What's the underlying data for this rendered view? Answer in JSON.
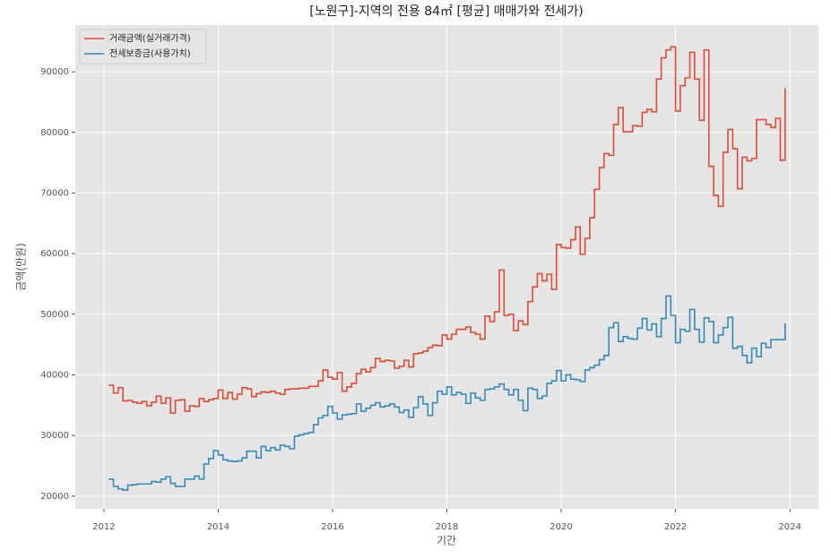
{
  "chart_data": {
    "type": "line",
    "drawstyle": "steps",
    "title": "[노원구]-지역의 전용 84㎡ [평균] 매매가와 전세가)",
    "x_label": "기간",
    "y_label": "금액(만원)",
    "xlim": [
      2011.5,
      2024.5
    ],
    "xticks": [
      2012,
      2014,
      2016,
      2018,
      2020,
      2022,
      2024
    ],
    "ylim": [
      17900,
      97700
    ],
    "yticks": [
      20000,
      30000,
      40000,
      50000,
      60000,
      70000,
      80000,
      90000
    ],
    "grid": true,
    "legend": "upper left",
    "x": [
      2012.083,
      2012.167,
      2012.25,
      2012.333,
      2012.417,
      2012.5,
      2012.583,
      2012.667,
      2012.75,
      2012.833,
      2012.917,
      2013.0,
      2013.083,
      2013.167,
      2013.25,
      2013.333,
      2013.417,
      2013.5,
      2013.583,
      2013.667,
      2013.75,
      2013.833,
      2013.917,
      2014.0,
      2014.083,
      2014.167,
      2014.25,
      2014.333,
      2014.417,
      2014.5,
      2014.583,
      2014.667,
      2014.75,
      2014.833,
      2014.917,
      2015.0,
      2015.083,
      2015.167,
      2015.25,
      2015.333,
      2015.417,
      2015.5,
      2015.583,
      2015.667,
      2015.75,
      2015.833,
      2015.917,
      2016.0,
      2016.083,
      2016.167,
      2016.25,
      2016.333,
      2016.417,
      2016.5,
      2016.583,
      2016.667,
      2016.75,
      2016.833,
      2016.917,
      2017.0,
      2017.083,
      2017.167,
      2017.25,
      2017.333,
      2017.417,
      2017.5,
      2017.583,
      2017.667,
      2017.75,
      2017.833,
      2017.917,
      2018.0,
      2018.083,
      2018.167,
      2018.25,
      2018.333,
      2018.417,
      2018.5,
      2018.583,
      2018.667,
      2018.75,
      2018.833,
      2018.917,
      2019.0,
      2019.083,
      2019.167,
      2019.25,
      2019.333,
      2019.417,
      2019.5,
      2019.583,
      2019.667,
      2019.75,
      2019.833,
      2019.917,
      2020.0,
      2020.083,
      2020.167,
      2020.25,
      2020.333,
      2020.417,
      2020.5,
      2020.583,
      2020.667,
      2020.75,
      2020.833,
      2020.917,
      2021.0,
      2021.083,
      2021.167,
      2021.25,
      2021.333,
      2021.417,
      2021.5,
      2021.583,
      2021.667,
      2021.75,
      2021.833,
      2021.917,
      2022.0,
      2022.083,
      2022.167,
      2022.25,
      2022.333,
      2022.417,
      2022.5,
      2022.583,
      2022.667,
      2022.75,
      2022.833,
      2022.917,
      2023.0,
      2023.083,
      2023.167,
      2023.25,
      2023.333,
      2023.417,
      2023.5,
      2023.583,
      2023.667,
      2023.75,
      2023.833,
      2023.917
    ],
    "series": [
      {
        "name": "거래금액(실거래가격)",
        "color": "#e24a33",
        "values": [
          38300,
          37000,
          37900,
          35700,
          35800,
          35500,
          35300,
          35600,
          34900,
          35500,
          36500,
          35300,
          36200,
          33700,
          35800,
          35900,
          34000,
          34900,
          34800,
          36100,
          35600,
          35900,
          36100,
          37500,
          36100,
          37100,
          36000,
          36800,
          37900,
          37700,
          36400,
          36900,
          37200,
          37100,
          37300,
          37000,
          36800,
          37600,
          37700,
          37700,
          37800,
          37800,
          38100,
          38100,
          39000,
          40800,
          39600,
          39300,
          40400,
          37300,
          38000,
          38600,
          40200,
          40900,
          40500,
          41200,
          42700,
          42200,
          42400,
          42300,
          41100,
          41400,
          42400,
          41300,
          43500,
          43600,
          43900,
          44500,
          44900,
          44800,
          46600,
          45900,
          46700,
          47500,
          47500,
          47900,
          47000,
          46700,
          45900,
          49700,
          48800,
          50400,
          57300,
          49800,
          50000,
          47300,
          48900,
          48300,
          52100,
          54500,
          56700,
          55500,
          56600,
          54100,
          61500,
          61000,
          60900,
          62300,
          64400,
          59900,
          62500,
          65900,
          70600,
          74200,
          76500,
          76200,
          81300,
          84100,
          80100,
          80100,
          81100,
          81000,
          83300,
          83800,
          83400,
          88800,
          92300,
          93600,
          94100,
          83500,
          87700,
          89000,
          93200,
          88800,
          82000,
          93600,
          74400,
          69600,
          67800,
          76700,
          80500,
          77300,
          70700,
          75900,
          75300,
          75700,
          82100,
          82100,
          81300,
          80800,
          82300,
          75400,
          87300
        ]
      },
      {
        "name": "전세보증금(사용가치)",
        "color": "#348abd",
        "values": [
          22800,
          21600,
          21200,
          21000,
          21800,
          21900,
          22000,
          22000,
          22000,
          22400,
          22300,
          22800,
          23200,
          22100,
          21600,
          21600,
          22800,
          22800,
          23300,
          22800,
          25300,
          26200,
          27500,
          26800,
          26000,
          25800,
          25700,
          25800,
          26300,
          27400,
          27400,
          26300,
          28200,
          27500,
          28000,
          27600,
          28400,
          28200,
          27800,
          29900,
          30100,
          30300,
          30500,
          31800,
          32900,
          33300,
          34800,
          33700,
          32700,
          33400,
          33500,
          33600,
          35200,
          34000,
          34500,
          35000,
          35400,
          34700,
          34900,
          35200,
          34700,
          33800,
          34200,
          33000,
          34600,
          36400,
          35200,
          33300,
          35400,
          37300,
          36800,
          38000,
          36700,
          37100,
          36800,
          35300,
          37000,
          36200,
          35800,
          37600,
          37700,
          38000,
          38500,
          37600,
          36700,
          37600,
          35800,
          34100,
          37800,
          37600,
          36100,
          36500,
          38600,
          39000,
          40700,
          39000,
          40000,
          39300,
          39200,
          38900,
          40800,
          41200,
          41600,
          42500,
          43200,
          47800,
          48600,
          45500,
          46300,
          46000,
          45900,
          47700,
          49300,
          47400,
          48400,
          46300,
          49300,
          53000,
          49800,
          45300,
          47500,
          47200,
          50800,
          47500,
          45400,
          49400,
          48800,
          45300,
          46600,
          47800,
          49500,
          44400,
          44700,
          43200,
          42000,
          44400,
          43000,
          45200,
          44500,
          45800,
          45800,
          45800,
          48500
        ]
      }
    ]
  }
}
